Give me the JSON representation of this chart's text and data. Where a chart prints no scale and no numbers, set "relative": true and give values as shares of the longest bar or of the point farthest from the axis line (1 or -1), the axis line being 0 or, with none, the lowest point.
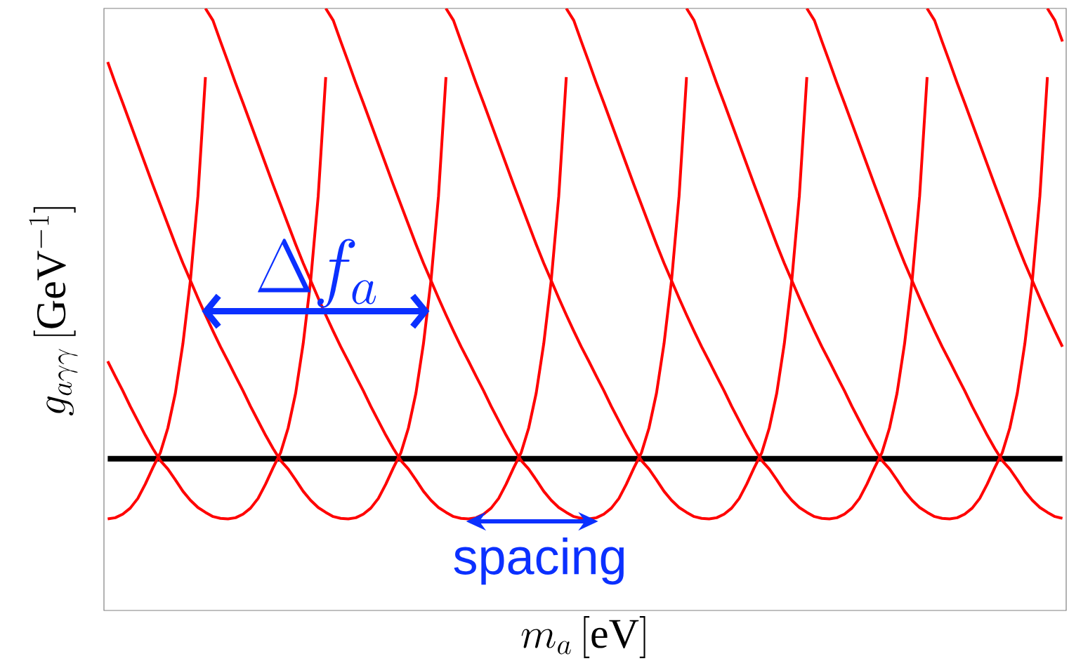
{
  "chart_data": {
    "type": "line",
    "relative": true,
    "xlabel": "m_a\\,[\\mathrm{eV}]",
    "ylabel": "g_{a\\gamma\\gamma}\\,[\\mathrm{GeV}^{-1}]",
    "annotations": [
      "\\Delta f_a",
      "spacing"
    ],
    "categories": [
      null,
      null,
      null,
      null,
      null,
      null,
      null,
      null,
      null,
      null,
      null,
      null,
      null,
      null,
      null,
      null,
      null,
      null,
      null,
      null,
      null,
      null,
      null,
      null,
      null,
      null,
      null,
      null,
      null,
      null,
      null,
      null,
      null,
      null,
      null,
      null,
      null,
      null,
      null,
      null,
      null,
      null,
      null,
      null,
      null,
      null,
      null,
      null,
      null,
      null,
      null,
      null,
      null,
      null,
      null,
      null,
      null,
      null,
      null,
      null,
      null,
      null,
      null,
      null,
      null,
      null,
      null,
      null,
      null,
      null,
      null,
      null,
      null,
      null,
      null,
      null,
      null,
      null,
      null,
      null,
      null,
      null,
      null,
      null,
      null,
      null,
      null,
      null,
      null,
      null,
      null,
      null,
      null,
      null,
      null,
      null,
      null,
      null,
      null,
      null,
      null,
      null,
      null,
      null,
      null,
      null,
      null,
      null,
      null,
      null,
      null,
      null,
      null,
      null,
      null,
      null,
      null,
      null,
      null,
      null,
      null,
      null,
      null,
      null,
      null,
      null,
      null,
      null
    ],
    "series": [
      {
        "color": "#000000",
        "values": [
          0.252,
          0.252,
          0.252,
          0.252,
          0.252,
          0.252,
          0.252,
          0.252,
          0.252,
          0.252,
          0.252,
          0.252,
          0.252,
          0.252,
          0.252,
          0.252,
          0.252,
          0.252,
          0.252,
          0.252,
          0.252,
          0.252,
          0.252,
          0.252,
          0.252,
          0.252,
          0.252,
          0.252,
          0.252,
          0.252,
          0.252,
          0.252,
          0.252,
          0.252,
          0.252,
          0.252,
          0.252,
          0.252,
          0.252,
          0.252,
          0.252,
          0.252,
          0.252,
          0.252,
          0.252,
          0.252,
          0.252,
          0.252,
          0.252,
          0.252,
          0.252,
          0.252,
          0.252,
          0.252,
          0.252,
          0.252,
          0.252,
          0.252,
          0.252,
          0.252,
          0.252,
          0.252,
          0.252,
          0.252,
          0.252,
          0.252,
          0.252,
          0.252,
          0.252,
          0.252,
          0.252,
          0.252,
          0.252,
          0.252,
          0.252,
          0.252,
          0.252,
          0.252,
          0.252,
          0.252,
          0.252,
          0.252,
          0.252,
          0.252,
          0.252,
          0.252,
          0.252,
          0.252,
          0.252,
          0.252,
          0.252,
          0.252,
          0.252,
          0.252,
          0.252,
          0.252,
          0.252,
          0.252,
          0.252,
          0.252,
          0.252,
          0.252,
          0.252,
          0.252,
          0.252,
          0.252,
          0.252,
          0.252,
          0.252,
          0.252,
          0.252,
          0.252,
          0.252,
          0.252,
          0.252,
          0.252,
          0.252,
          0.252,
          0.252,
          0.252,
          0.252,
          0.252,
          0.252,
          0.252,
          0.252,
          0.252,
          0.252,
          0.252
        ]
      },
      {
        "color": "#ff0000",
        "values": [
          0.152,
          0.154,
          0.16,
          0.17,
          0.186,
          0.21,
          0.237,
          0.262,
          0.303,
          0.361,
          0.443,
          0.548,
          0.688,
          0.886,
          null,
          null,
          null,
          null,
          null,
          null,
          null,
          null,
          null,
          null,
          null,
          null,
          null,
          null,
          null,
          null,
          null,
          null,
          null,
          null,
          null,
          null,
          null,
          null,
          null,
          null,
          null,
          null,
          null,
          null,
          null,
          null,
          null,
          null,
          null,
          null,
          null,
          null,
          null,
          null,
          null,
          null,
          null,
          null,
          null,
          null,
          null,
          null,
          null,
          null,
          null,
          null,
          null,
          null,
          null,
          null,
          null,
          null,
          null,
          null,
          null,
          null,
          null,
          null,
          null,
          null,
          null,
          null,
          null,
          null,
          null,
          null,
          null,
          null,
          null,
          null,
          null,
          null,
          null,
          null,
          null,
          null,
          null,
          null,
          null,
          null,
          null,
          null,
          null,
          null,
          null,
          null,
          null,
          null,
          null,
          null,
          null,
          null,
          null,
          null,
          null,
          null,
          null,
          null,
          null,
          null,
          null,
          null,
          null,
          null,
          null,
          null,
          null,
          null
        ]
      },
      {
        "color": "#ff0000",
        "values": [
          0.414,
          0.389,
          0.365,
          0.339,
          0.315,
          0.291,
          0.269,
          0.249,
          0.235,
          0.217,
          0.198,
          0.183,
          0.171,
          0.163,
          0.156,
          0.153,
          0.152,
          0.154,
          0.16,
          0.17,
          0.186,
          0.21,
          0.237,
          0.262,
          0.303,
          0.361,
          0.443,
          0.548,
          0.688,
          0.886,
          null,
          null,
          null,
          null,
          null,
          null,
          null,
          null,
          null,
          null,
          null,
          null,
          null,
          null,
          null,
          null,
          null,
          null,
          null,
          null,
          null,
          null,
          null,
          null,
          null,
          null,
          null,
          null,
          null,
          null,
          null,
          null,
          null,
          null,
          null,
          null,
          null,
          null,
          null,
          null,
          null,
          null,
          null,
          null,
          null,
          null,
          null,
          null,
          null,
          null,
          null,
          null,
          null,
          null,
          null,
          null,
          null,
          null,
          null,
          null,
          null,
          null,
          null,
          null,
          null,
          null,
          null,
          null,
          null,
          null,
          null,
          null,
          null,
          null,
          null,
          null,
          null,
          null,
          null,
          null,
          null,
          null,
          null,
          null,
          null,
          null,
          null,
          null,
          null,
          null,
          null,
          null,
          null,
          null,
          null,
          null,
          null,
          null
        ]
      },
      {
        "color": "#ff0000",
        "values": [
          0.911,
          0.876,
          0.843,
          0.809,
          0.775,
          0.741,
          0.707,
          0.674,
          0.641,
          0.608,
          0.577,
          0.548,
          0.519,
          0.491,
          0.464,
          0.438,
          0.414,
          0.389,
          0.365,
          0.339,
          0.315,
          0.291,
          0.269,
          0.249,
          0.235,
          0.217,
          0.198,
          0.183,
          0.171,
          0.163,
          0.156,
          0.153,
          0.152,
          0.154,
          0.16,
          0.17,
          0.186,
          0.21,
          0.237,
          0.262,
          0.303,
          0.361,
          0.443,
          0.548,
          0.688,
          0.886,
          null,
          null,
          null,
          null,
          null,
          null,
          null,
          null,
          null,
          null,
          null,
          null,
          null,
          null,
          null,
          null,
          null,
          null,
          null,
          null,
          null,
          null,
          null,
          null,
          null,
          null,
          null,
          null,
          null,
          null,
          null,
          null,
          null,
          null,
          null,
          null,
          null,
          null,
          null,
          null,
          null,
          null,
          null,
          null,
          null,
          null,
          null,
          null,
          null,
          null,
          null,
          null,
          null,
          null,
          null,
          null,
          null,
          null,
          null,
          null,
          null,
          null,
          null,
          null,
          null,
          null,
          null,
          null,
          null,
          null,
          null,
          null,
          null,
          null,
          null,
          null,
          null,
          null,
          null,
          null,
          null,
          null
        ]
      },
      {
        "color": "#ff0000",
        "values": [
          null,
          null,
          null,
          null,
          null,
          null,
          null,
          null,
          null,
          null,
          null,
          null,
          null,
          1,
          0.98,
          0.945,
          0.911,
          0.876,
          0.843,
          0.809,
          0.775,
          0.741,
          0.707,
          0.674,
          0.641,
          0.608,
          0.577,
          0.548,
          0.519,
          0.491,
          0.464,
          0.438,
          0.414,
          0.389,
          0.365,
          0.339,
          0.315,
          0.291,
          0.269,
          0.249,
          0.235,
          0.217,
          0.198,
          0.183,
          0.171,
          0.163,
          0.156,
          0.153,
          0.152,
          0.154,
          0.16,
          0.17,
          0.186,
          0.21,
          0.237,
          0.262,
          0.303,
          0.361,
          0.443,
          0.548,
          0.688,
          0.886,
          null,
          null,
          null,
          null,
          null,
          null,
          null,
          null,
          null,
          null,
          null,
          null,
          null,
          null,
          null,
          null,
          null,
          null,
          null,
          null,
          null,
          null,
          null,
          null,
          null,
          null,
          null,
          null,
          null,
          null,
          null,
          null,
          null,
          null,
          null,
          null,
          null,
          null,
          null,
          null,
          null,
          null,
          null,
          null,
          null,
          null,
          null,
          null,
          null,
          null,
          null,
          null,
          null,
          null,
          null,
          null,
          null,
          null,
          null,
          null,
          null,
          null,
          null,
          null,
          null,
          null
        ]
      },
      {
        "color": "#ff0000",
        "values": [
          null,
          null,
          null,
          null,
          null,
          null,
          null,
          null,
          null,
          null,
          null,
          null,
          null,
          null,
          null,
          null,
          null,
          null,
          null,
          null,
          null,
          null,
          null,
          null,
          null,
          null,
          null,
          null,
          null,
          1,
          0.98,
          0.945,
          0.911,
          0.876,
          0.843,
          0.809,
          0.775,
          0.741,
          0.707,
          0.674,
          0.641,
          0.608,
          0.577,
          0.548,
          0.519,
          0.491,
          0.464,
          0.438,
          0.414,
          0.389,
          0.365,
          0.339,
          0.315,
          0.291,
          0.269,
          0.249,
          0.235,
          0.217,
          0.198,
          0.183,
          0.171,
          0.163,
          0.156,
          0.153,
          0.152,
          0.154,
          0.16,
          0.17,
          0.186,
          0.21,
          0.237,
          0.262,
          0.303,
          0.361,
          0.443,
          0.548,
          0.688,
          0.886,
          null,
          null,
          null,
          null,
          null,
          null,
          null,
          null,
          null,
          null,
          null,
          null,
          null,
          null,
          null,
          null,
          null,
          null,
          null,
          null,
          null,
          null,
          null,
          null,
          null,
          null,
          null,
          null,
          null,
          null,
          null,
          null,
          null,
          null,
          null,
          null,
          null,
          null,
          null,
          null,
          null,
          null,
          null,
          null,
          null,
          null,
          null,
          null,
          null,
          null
        ]
      },
      {
        "color": "#ff0000",
        "values": [
          null,
          null,
          null,
          null,
          null,
          null,
          null,
          null,
          null,
          null,
          null,
          null,
          null,
          null,
          null,
          null,
          null,
          null,
          null,
          null,
          null,
          null,
          null,
          null,
          null,
          null,
          null,
          null,
          null,
          null,
          null,
          null,
          null,
          null,
          null,
          null,
          null,
          null,
          null,
          null,
          null,
          null,
          null,
          null,
          null,
          1,
          0.98,
          0.945,
          0.911,
          0.876,
          0.843,
          0.809,
          0.775,
          0.741,
          0.707,
          0.674,
          0.641,
          0.608,
          0.577,
          0.548,
          0.519,
          0.491,
          0.464,
          0.438,
          0.414,
          0.389,
          0.365,
          0.339,
          0.315,
          0.291,
          0.269,
          0.249,
          0.235,
          0.217,
          0.198,
          0.183,
          0.171,
          0.163,
          0.156,
          0.153,
          0.152,
          0.154,
          0.16,
          0.17,
          0.186,
          0.21,
          0.237,
          0.262,
          0.303,
          0.361,
          0.443,
          0.548,
          0.688,
          0.886,
          null,
          null,
          null,
          null,
          null,
          null,
          null,
          null,
          null,
          null,
          null,
          null,
          null,
          null,
          null,
          null,
          null,
          null,
          null,
          null,
          null,
          null,
          null,
          null,
          null,
          null,
          null,
          null,
          null,
          null,
          null,
          null,
          null,
          null
        ]
      },
      {
        "color": "#ff0000",
        "values": [
          null,
          null,
          null,
          null,
          null,
          null,
          null,
          null,
          null,
          null,
          null,
          null,
          null,
          null,
          null,
          null,
          null,
          null,
          null,
          null,
          null,
          null,
          null,
          null,
          null,
          null,
          null,
          null,
          null,
          null,
          null,
          null,
          null,
          null,
          null,
          null,
          null,
          null,
          null,
          null,
          null,
          null,
          null,
          null,
          null,
          null,
          null,
          null,
          null,
          null,
          null,
          null,
          null,
          null,
          null,
          null,
          null,
          null,
          null,
          null,
          null,
          1,
          0.98,
          0.945,
          0.911,
          0.876,
          0.843,
          0.809,
          0.775,
          0.741,
          0.707,
          0.674,
          0.641,
          0.608,
          0.577,
          0.548,
          0.519,
          0.491,
          0.464,
          0.438,
          0.414,
          0.389,
          0.365,
          0.339,
          0.315,
          0.291,
          0.269,
          0.249,
          0.235,
          0.217,
          0.198,
          0.183,
          0.171,
          0.163,
          0.156,
          0.153,
          0.152,
          0.154,
          0.16,
          0.17,
          0.186,
          0.21,
          0.237,
          0.262,
          0.303,
          0.361,
          0.443,
          0.548,
          0.688,
          0.886,
          null,
          null,
          null,
          null,
          null,
          null,
          null,
          null,
          null,
          null,
          null,
          null,
          null,
          null,
          null,
          null,
          null,
          null
        ]
      },
      {
        "color": "#ff0000",
        "values": [
          null,
          null,
          null,
          null,
          null,
          null,
          null,
          null,
          null,
          null,
          null,
          null,
          null,
          null,
          null,
          null,
          null,
          null,
          null,
          null,
          null,
          null,
          null,
          null,
          null,
          null,
          null,
          null,
          null,
          null,
          null,
          null,
          null,
          null,
          null,
          null,
          null,
          null,
          null,
          null,
          null,
          null,
          null,
          null,
          null,
          null,
          null,
          null,
          null,
          null,
          null,
          null,
          null,
          null,
          null,
          null,
          null,
          null,
          null,
          null,
          null,
          null,
          null,
          null,
          null,
          null,
          null,
          null,
          null,
          null,
          null,
          null,
          null,
          null,
          null,
          null,
          null,
          1,
          0.98,
          0.945,
          0.911,
          0.876,
          0.843,
          0.809,
          0.775,
          0.741,
          0.707,
          0.674,
          0.641,
          0.608,
          0.577,
          0.548,
          0.519,
          0.491,
          0.464,
          0.438,
          0.414,
          0.389,
          0.365,
          0.339,
          0.315,
          0.291,
          0.269,
          0.249,
          0.235,
          0.217,
          0.198,
          0.183,
          0.171,
          0.163,
          0.156,
          0.153,
          0.152,
          0.154,
          0.16,
          0.17,
          0.186,
          0.21,
          0.237,
          0.262,
          0.303,
          0.361,
          0.443,
          0.548,
          0.688,
          0.886,
          null,
          null
        ]
      },
      {
        "color": "#ff0000",
        "values": [
          null,
          null,
          null,
          null,
          null,
          null,
          null,
          null,
          null,
          null,
          null,
          null,
          null,
          null,
          null,
          null,
          null,
          null,
          null,
          null,
          null,
          null,
          null,
          null,
          null,
          null,
          null,
          null,
          null,
          null,
          null,
          null,
          null,
          null,
          null,
          null,
          null,
          null,
          null,
          null,
          null,
          null,
          null,
          null,
          null,
          null,
          null,
          null,
          null,
          null,
          null,
          null,
          null,
          null,
          null,
          null,
          null,
          null,
          null,
          null,
          null,
          null,
          null,
          null,
          null,
          null,
          null,
          null,
          null,
          null,
          null,
          null,
          null,
          null,
          null,
          null,
          null,
          null,
          null,
          null,
          null,
          null,
          null,
          null,
          null,
          null,
          null,
          null,
          null,
          null,
          null,
          null,
          null,
          1,
          0.98,
          0.945,
          0.911,
          0.876,
          0.843,
          0.809,
          0.775,
          0.741,
          0.707,
          0.674,
          0.641,
          0.608,
          0.577,
          0.548,
          0.519,
          0.491,
          0.464,
          0.438,
          0.414,
          0.389,
          0.365,
          0.339,
          0.315,
          0.291,
          0.269,
          0.249,
          0.235,
          0.217,
          0.198,
          0.183,
          0.171,
          0.163,
          0.156,
          0.153
        ]
      },
      {
        "color": "#ff0000",
        "values": [
          null,
          null,
          null,
          null,
          null,
          null,
          null,
          null,
          null,
          null,
          null,
          null,
          null,
          null,
          null,
          null,
          null,
          null,
          null,
          null,
          null,
          null,
          null,
          null,
          null,
          null,
          null,
          null,
          null,
          null,
          null,
          null,
          null,
          null,
          null,
          null,
          null,
          null,
          null,
          null,
          null,
          null,
          null,
          null,
          null,
          null,
          null,
          null,
          null,
          null,
          null,
          null,
          null,
          null,
          null,
          null,
          null,
          null,
          null,
          null,
          null,
          null,
          null,
          null,
          null,
          null,
          null,
          null,
          null,
          null,
          null,
          null,
          null,
          null,
          null,
          null,
          null,
          null,
          null,
          null,
          null,
          null,
          null,
          null,
          null,
          null,
          null,
          null,
          null,
          null,
          null,
          null,
          null,
          null,
          null,
          null,
          null,
          null,
          null,
          null,
          null,
          null,
          null,
          null,
          null,
          null,
          null,
          null,
          null,
          1,
          0.98,
          0.945,
          0.911,
          0.876,
          0.843,
          0.809,
          0.775,
          0.741,
          0.707,
          0.674,
          0.641,
          0.608,
          0.577,
          0.548,
          0.519,
          0.491,
          0.464,
          0.438
        ]
      },
      {
        "color": "#ff0000",
        "values": [
          null,
          null,
          null,
          null,
          null,
          null,
          null,
          null,
          null,
          null,
          null,
          null,
          null,
          null,
          null,
          null,
          null,
          null,
          null,
          null,
          null,
          null,
          null,
          null,
          null,
          null,
          null,
          null,
          null,
          null,
          null,
          null,
          null,
          null,
          null,
          null,
          null,
          null,
          null,
          null,
          null,
          null,
          null,
          null,
          null,
          null,
          null,
          null,
          null,
          null,
          null,
          null,
          null,
          null,
          null,
          null,
          null,
          null,
          null,
          null,
          null,
          null,
          null,
          null,
          null,
          null,
          null,
          null,
          null,
          null,
          null,
          null,
          null,
          null,
          null,
          null,
          null,
          null,
          null,
          null,
          null,
          null,
          null,
          null,
          null,
          null,
          null,
          null,
          null,
          null,
          null,
          null,
          null,
          null,
          null,
          null,
          null,
          null,
          null,
          null,
          null,
          null,
          null,
          null,
          null,
          null,
          null,
          null,
          null,
          null,
          null,
          null,
          null,
          null,
          null,
          null,
          null,
          null,
          null,
          null,
          null,
          null,
          null,
          null,
          null,
          1,
          0.98,
          0.945
        ]
      }
    ]
  }
}
